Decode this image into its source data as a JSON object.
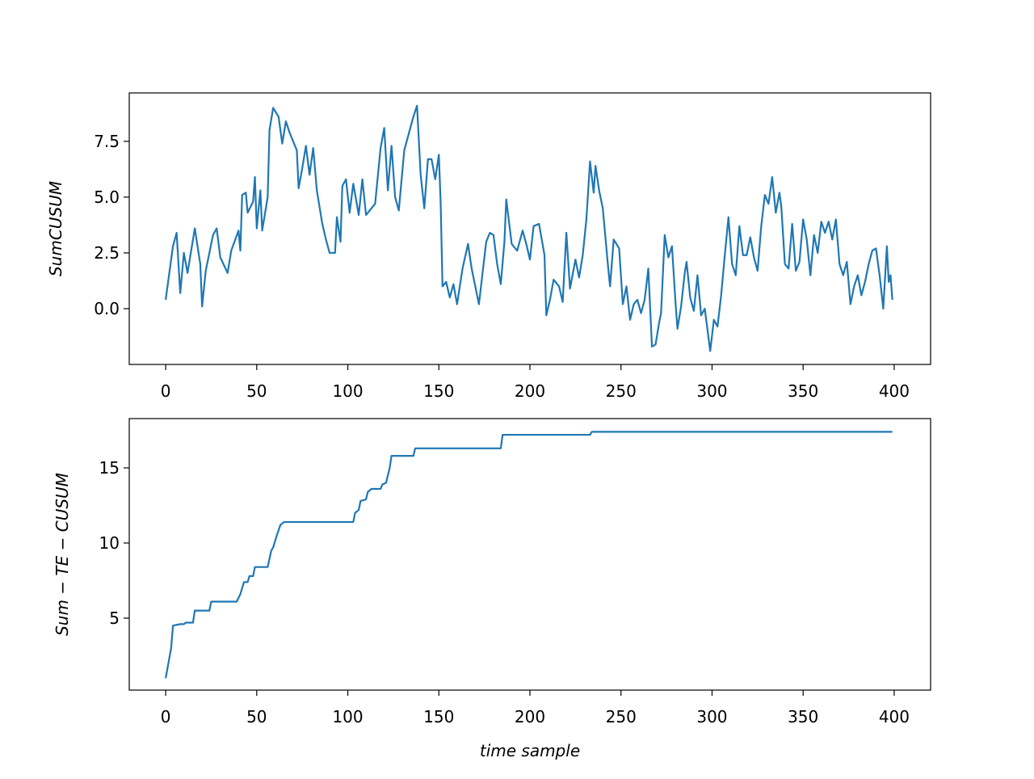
{
  "chart_data": [
    {
      "type": "line",
      "ylabel": "SumCUSUM",
      "color": "#1f77b4",
      "xlim": [
        -20,
        420
      ],
      "ylim": [
        -2.5,
        9.67
      ],
      "xticks": [
        0,
        50,
        100,
        150,
        200,
        250,
        300,
        350,
        400
      ],
      "yticks": [
        {
          "value": 0,
          "label": "0.0"
        },
        {
          "value": 2.5,
          "label": "2.5"
        },
        {
          "value": 5,
          "label": "5.0"
        },
        {
          "value": 7.5,
          "label": "7.5"
        }
      ],
      "x": [
        0,
        4,
        6,
        8,
        10,
        12,
        16,
        19,
        20,
        22,
        26,
        28,
        30,
        34,
        36,
        40,
        41,
        42,
        44,
        45,
        48,
        49,
        50,
        52,
        53,
        56,
        57,
        59,
        62,
        64,
        66,
        68,
        72,
        73,
        75,
        77,
        79,
        81,
        83,
        86,
        88,
        90,
        93,
        94,
        96,
        97,
        99,
        101,
        103,
        106,
        108,
        110,
        112,
        115,
        118,
        120,
        122,
        124,
        126,
        128,
        131,
        136,
        138,
        140,
        142,
        144,
        146,
        148,
        150,
        151,
        152,
        154,
        156,
        158,
        160,
        163,
        166,
        168,
        170,
        172,
        174,
        176,
        178,
        180,
        182,
        184,
        186,
        187,
        190,
        193,
        196,
        198,
        200,
        202,
        205,
        208,
        209,
        211,
        213,
        216,
        218,
        220,
        222,
        225,
        227,
        229,
        231,
        233,
        235,
        236,
        238,
        240,
        243,
        244,
        246,
        249,
        251,
        253,
        255,
        257,
        259,
        261,
        263,
        265,
        267,
        269,
        271,
        272,
        274,
        276,
        278,
        280,
        281,
        283,
        285,
        286,
        288,
        290,
        292,
        294,
        296,
        299,
        301,
        303,
        305,
        307,
        309,
        311,
        313,
        315,
        317,
        319,
        321,
        323,
        325,
        327,
        329,
        331,
        333,
        335,
        337,
        338,
        340,
        342,
        344,
        346,
        348,
        350,
        352,
        354,
        356,
        358,
        360,
        362,
        364,
        366,
        368,
        370,
        372,
        374,
        376,
        378,
        380,
        382,
        384,
        386,
        388,
        390,
        392,
        394,
        396,
        397,
        398,
        399
      ],
      "values": [
        0.4,
        2.8,
        3.4,
        0.7,
        2.5,
        1.6,
        3.6,
        2.0,
        0.1,
        1.7,
        3.3,
        3.6,
        2.3,
        1.6,
        2.6,
        3.5,
        2.6,
        5.1,
        5.2,
        4.3,
        4.8,
        5.9,
        3.6,
        5.3,
        3.5,
        5.0,
        8.0,
        9.0,
        8.6,
        7.4,
        8.4,
        7.9,
        7.1,
        5.4,
        6.3,
        7.3,
        6.0,
        7.2,
        5.3,
        3.8,
        3.1,
        2.5,
        2.5,
        4.1,
        3.0,
        5.5,
        5.8,
        4.3,
        5.6,
        4.2,
        5.8,
        4.2,
        4.4,
        4.7,
        7.2,
        8.1,
        5.3,
        7.3,
        5.0,
        4.4,
        7.1,
        8.6,
        9.1,
        6.0,
        4.5,
        6.7,
        6.7,
        5.8,
        6.9,
        4.7,
        1.0,
        1.2,
        0.5,
        1.1,
        0.2,
        1.8,
        2.9,
        1.8,
        1.0,
        0.2,
        1.6,
        3.0,
        3.4,
        3.3,
        2.0,
        1.1,
        3.0,
        4.9,
        2.9,
        2.6,
        3.5,
        2.9,
        2.2,
        3.7,
        3.8,
        2.4,
        -0.3,
        0.4,
        1.3,
        1.0,
        0.3,
        3.4,
        0.9,
        2.2,
        1.4,
        2.4,
        4.0,
        6.6,
        5.2,
        6.4,
        5.3,
        4.5,
        1.8,
        1.0,
        3.1,
        2.7,
        0.2,
        1.0,
        -0.5,
        0.2,
        0.4,
        -0.2,
        0.4,
        1.8,
        -1.7,
        -1.6,
        -0.6,
        -0.2,
        3.3,
        2.3,
        2.8,
        0.2,
        -0.9,
        0.1,
        1.6,
        2.1,
        0.5,
        -0.1,
        1.5,
        -0.3,
        0.0,
        -1.9,
        -0.5,
        -0.8,
        0.6,
        2.4,
        4.1,
        2.0,
        1.5,
        3.7,
        2.4,
        2.4,
        3.2,
        2.3,
        1.7,
        3.7,
        5.1,
        4.7,
        5.9,
        4.3,
        5.2,
        4.6,
        2.0,
        1.8,
        3.8,
        1.7,
        2.1,
        4.0,
        3.1,
        1.5,
        3.3,
        2.5,
        3.9,
        3.4,
        3.9,
        3.1,
        4.0,
        2.0,
        1.5,
        2.1,
        0.2,
        1.0,
        1.5,
        0.6,
        1.2,
        2.0,
        2.6,
        2.7,
        1.5,
        0.0,
        2.8,
        1.2,
        1.5,
        0.4
      ]
    },
    {
      "type": "line",
      "ylabel": "Sum − TE − CUSUM",
      "xlabel": "time sample",
      "color": "#1f77b4",
      "xlim": [
        -20,
        420
      ],
      "ylim": [
        0.21,
        18.28
      ],
      "xticks": [
        0,
        50,
        100,
        150,
        200,
        250,
        300,
        350,
        400
      ],
      "yticks": [
        5,
        10,
        15
      ],
      "x": [
        0,
        3,
        4,
        8,
        10,
        11,
        15,
        16,
        24,
        25,
        39,
        41,
        43,
        45,
        46,
        48,
        49,
        56,
        58,
        59,
        61,
        63,
        65,
        103,
        104,
        106,
        107,
        110,
        111,
        113,
        118,
        119,
        121,
        123,
        124,
        136,
        137,
        184,
        185,
        233,
        234,
        399
      ],
      "values": [
        1.0,
        3.0,
        4.5,
        4.6,
        4.6,
        4.7,
        4.7,
        5.5,
        5.5,
        6.1,
        6.1,
        6.6,
        7.4,
        7.4,
        7.8,
        7.8,
        8.4,
        8.4,
        9.5,
        9.7,
        10.5,
        11.2,
        11.4,
        11.4,
        12.0,
        12.2,
        12.8,
        12.9,
        13.4,
        13.6,
        13.6,
        13.9,
        14.0,
        15.0,
        15.8,
        15.8,
        16.3,
        16.3,
        17.2,
        17.2,
        17.4,
        17.4
      ]
    }
  ]
}
